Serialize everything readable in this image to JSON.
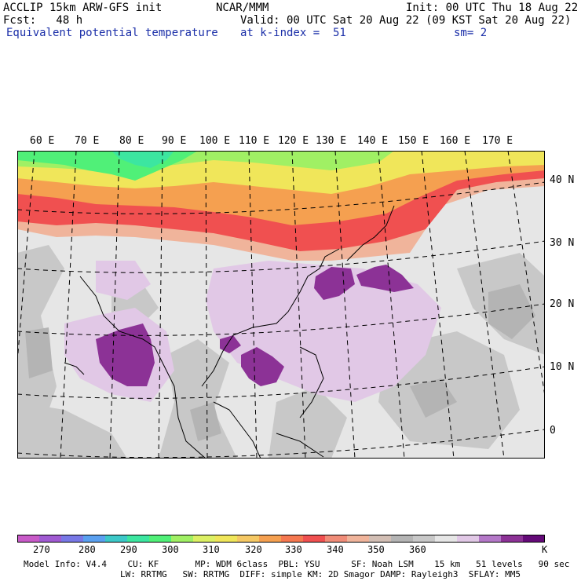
{
  "header": {
    "line1_left": "ACCLIP 15km ARW-GFS init",
    "line1_center": "NCAR/MMM",
    "line1_right": "Init: 00 UTC Thu 18 Aug 22",
    "fcst": "Fcst:   48 h",
    "valid": "Valid: 00 UTC Sat 20 Aug 22 (09 KST Sat 20 Aug 22)",
    "field": "Equivalent potential temperature",
    "level": "at k-index =  51",
    "smoothing": "sm= 2"
  },
  "lon_labels": [
    "60 E",
    "70 E",
    "80 E",
    "90 E",
    "100 E",
    "110 E",
    "120 E",
    "130 E",
    "140 E",
    "150 E",
    "160 E",
    "170 E"
  ],
  "lat_labels": [
    "40 N",
    "30 N",
    "20 N",
    "10 N",
    "0"
  ],
  "colorbar": {
    "labels": [
      "270",
      "280",
      "290",
      "300",
      "310",
      "320",
      "330",
      "340",
      "350",
      "360"
    ],
    "unit": "K",
    "colors": [
      "#c85ac8",
      "#a05ad2",
      "#7878e6",
      "#5aa0f0",
      "#3cc8c8",
      "#3ce6a0",
      "#50f078",
      "#a0f064",
      "#dcf064",
      "#f0e65a",
      "#f5c864",
      "#f5a050",
      "#f57850",
      "#f05050",
      "#f08c78",
      "#f0b49b",
      "#d2beb4",
      "#b4b4b4",
      "#c8c8c8",
      "#e6e6e6",
      "#e1c8e6",
      "#b478c8",
      "#8c3296",
      "#640a78"
    ]
  },
  "footer": {
    "line1": "Model Info: V4.4    CU: KF       MP: WDM 6class  PBL: YSU      SF: Noah LSM    15 km   51 levels   90 sec",
    "line2": "LW: RRTMG   SW: RRTMG  DIFF: simple KM: 2D Smagor DAMP: Rayleigh3  SFLAY: MM5"
  }
}
